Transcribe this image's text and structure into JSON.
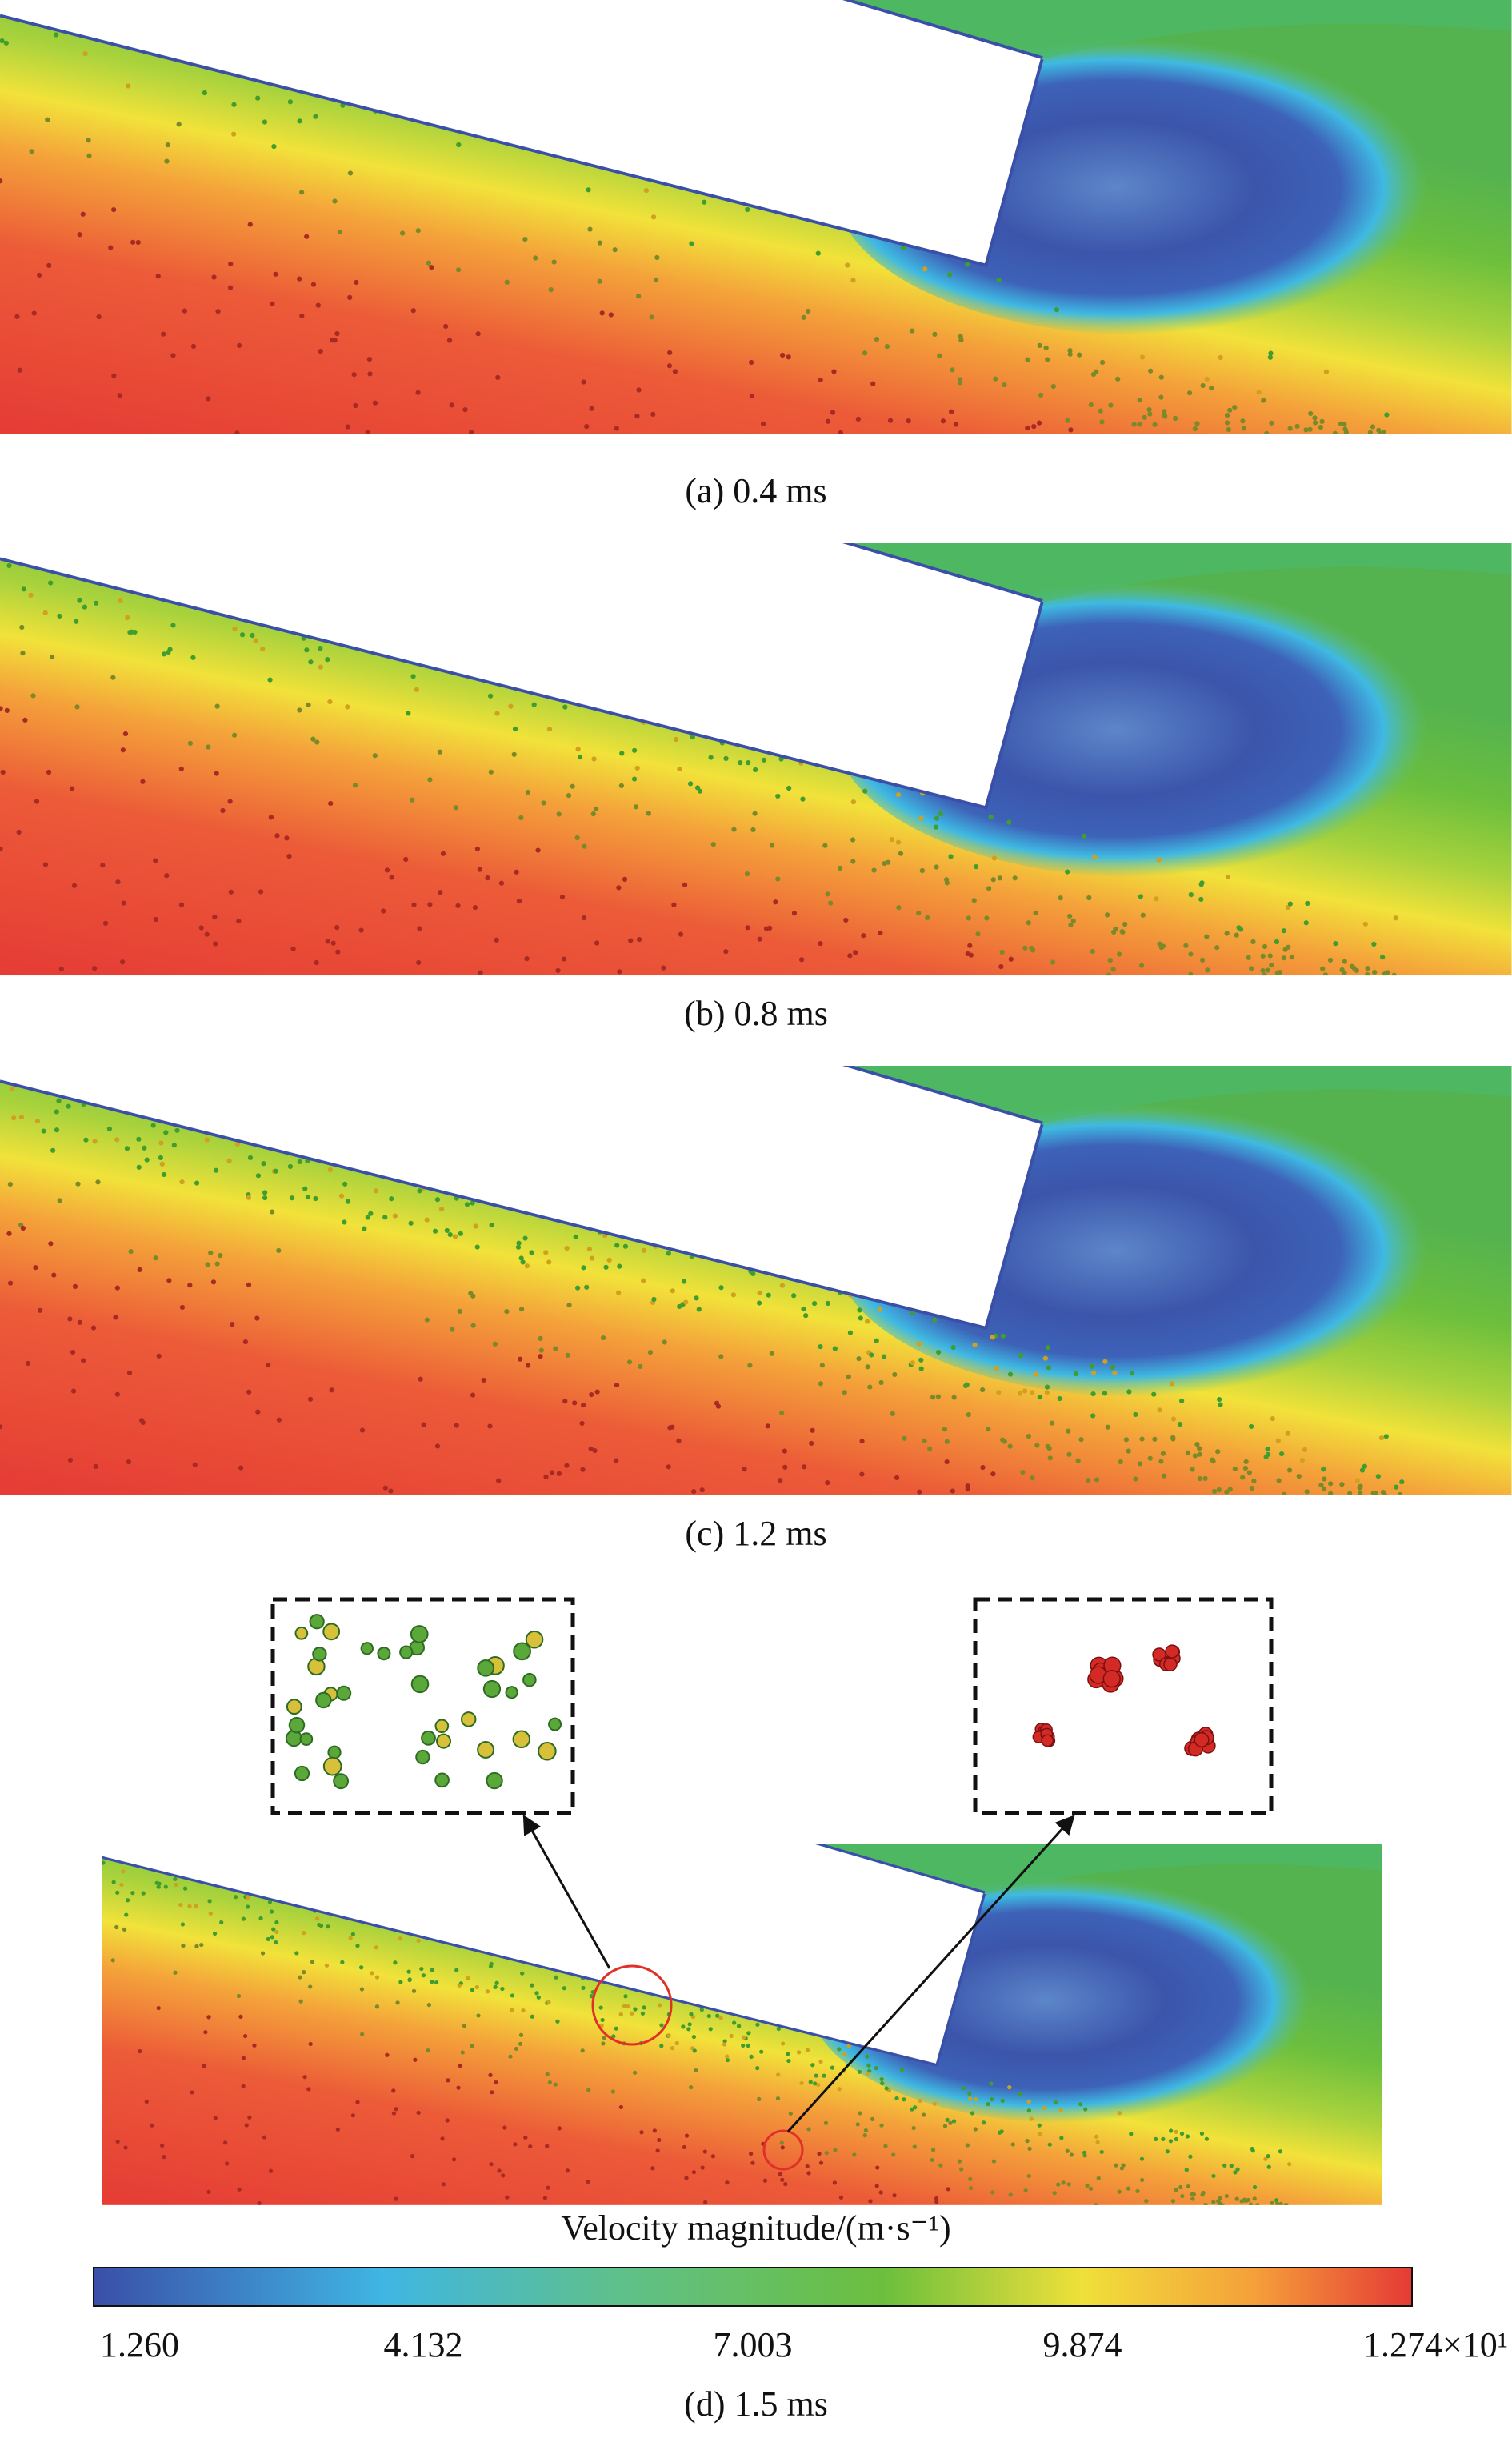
{
  "panels": [
    {
      "caption": "(a) 0.4 ms"
    },
    {
      "caption": "(b) 0.8 ms"
    },
    {
      "caption": "(c) 1.2 ms"
    },
    {
      "caption": "(d) 1.5 ms"
    }
  ],
  "colorbar": {
    "title": "Velocity magnitude/(m·s⁻¹)",
    "ticks": [
      "1.260",
      "4.132",
      "7.003",
      "9.874",
      "1.274×10¹"
    ]
  }
}
